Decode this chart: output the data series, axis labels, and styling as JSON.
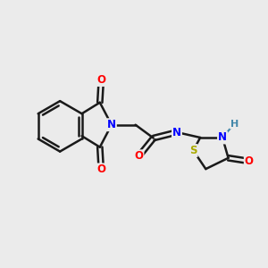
{
  "bg_color": "#ebebeb",
  "atom_colors": {
    "C": "#000000",
    "N": "#0000ff",
    "O": "#ff0000",
    "S": "#aaaa00",
    "H": "#4488aa"
  },
  "bond_color": "#1a1a1a",
  "bond_width": 1.8,
  "figsize": [
    3.0,
    3.0
  ],
  "dpi": 100,
  "xlim": [
    0,
    10
  ],
  "ylim": [
    0,
    10
  ]
}
